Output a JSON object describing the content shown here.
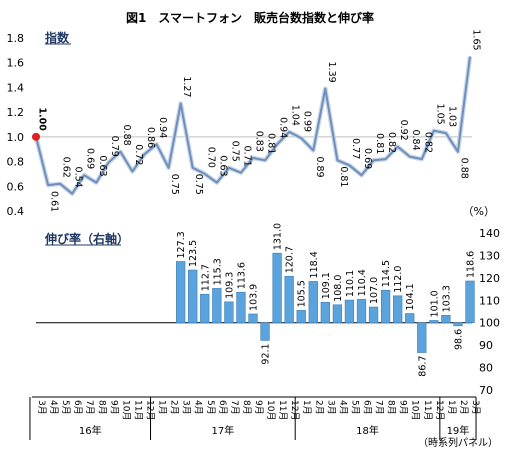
{
  "chart_data": {
    "title": "図1　スマートフォン　販売台数指数と伸び率",
    "note": "（時系列パネル）",
    "categories": [
      "3月",
      "4月",
      "5月",
      "6月",
      "7月",
      "8月",
      "9月",
      "10月",
      "11月",
      "12月",
      "1月",
      "2月",
      "3月",
      "4月",
      "5月",
      "6月",
      "7月",
      "8月",
      "9月",
      "10月",
      "11月",
      "12月",
      "1月",
      "2月",
      "3月",
      "4月",
      "5月",
      "6月",
      "7月",
      "8月",
      "9月",
      "10月",
      "11月",
      "12月",
      "1月",
      "2月",
      "3月"
    ],
    "years": [
      {
        "label": "16年",
        "start": 0,
        "end": 9
      },
      {
        "label": "17年",
        "start": 10,
        "end": 21
      },
      {
        "label": "18年",
        "start": 22,
        "end": 33
      },
      {
        "label": "19年",
        "start": 34,
        "end": 36
      }
    ],
    "index_chart": {
      "type": "line",
      "series_name": "指数",
      "ylim": [
        0.4,
        1.8
      ],
      "yticks": [
        0.4,
        0.6,
        0.8,
        1.0,
        1.2,
        1.4,
        1.6,
        1.8
      ],
      "ytick_labels": [
        "0.4",
        "0.6",
        "0.8",
        "1.0",
        "1.2",
        "1.4",
        "1.6",
        "1.8"
      ],
      "values": [
        1.0,
        0.61,
        0.62,
        0.54,
        0.69,
        0.63,
        0.79,
        0.88,
        0.72,
        0.86,
        0.94,
        0.75,
        1.27,
        0.75,
        0.7,
        0.63,
        0.75,
        0.71,
        0.83,
        0.81,
        0.94,
        1.04,
        0.99,
        0.89,
        1.39,
        0.81,
        0.77,
        0.69,
        0.81,
        0.82,
        0.92,
        0.84,
        0.82,
        1.05,
        1.03,
        0.88,
        1.65
      ],
      "labels": [
        "1.00",
        "0.61",
        "0.62",
        "0.54",
        "0.69",
        "0.63",
        "0.79",
        "0.88",
        "0.72",
        "0.86",
        "0.94",
        "0.75",
        "1.27",
        "0.75",
        "0.70",
        "0.63",
        "0.75",
        "0.71",
        "0.83",
        "0.81",
        "0.94",
        "1.04",
        "0.99",
        "0.89",
        "1.39",
        "0.81",
        "0.77",
        "0.69",
        "0.81",
        "0.82",
        "0.92",
        "0.84",
        "0.82",
        "1.05",
        "1.03",
        "0.88",
        "1.65"
      ],
      "label_pos": [
        "above",
        "below",
        "above",
        "above",
        "above",
        "above",
        "above",
        "above",
        "above",
        "above",
        "above",
        "below",
        "above",
        "below",
        "above",
        "above",
        "above",
        "above",
        "above",
        "above",
        "above",
        "above",
        "above",
        "below",
        "above",
        "below",
        "above",
        "above",
        "above",
        "above",
        "above",
        "above",
        "above",
        "above",
        "above",
        "below",
        "above"
      ],
      "line_color": "#6f8fb8",
      "marker_color": "#e02020",
      "first_label_color": "#c00000"
    },
    "growth_chart": {
      "type": "bar",
      "series_name": "伸び率（右軸）",
      "unit_label": "（%）",
      "ylim": [
        70,
        140
      ],
      "baseline": 100,
      "yticks": [
        70,
        80,
        90,
        100,
        110,
        120,
        130,
        140
      ],
      "ytick_labels": [
        "70",
        "80",
        "90",
        "100",
        "110",
        "120",
        "130",
        "140"
      ],
      "values": [
        null,
        null,
        null,
        null,
        null,
        null,
        null,
        null,
        null,
        null,
        null,
        null,
        127.3,
        123.5,
        112.7,
        115.3,
        109.3,
        113.6,
        103.9,
        92.1,
        131.0,
        120.7,
        105.5,
        118.4,
        109.1,
        108.0,
        110.1,
        110.4,
        107.0,
        114.5,
        112.0,
        104.1,
        86.7,
        101.0,
        103.3,
        98.6,
        118.6
      ],
      "labels": [
        "",
        "",
        "",
        "",
        "",
        "",
        "",
        "",
        "",
        "",
        "",
        "",
        "127.3",
        "123.5",
        "112.7",
        "115.3",
        "109.3",
        "113.6",
        "103.9",
        "92.1",
        "131.0",
        "120.7",
        "105.5",
        "118.4",
        "109.1",
        "108.0",
        "110.1",
        "110.4",
        "107.0",
        "114.5",
        "112.0",
        "104.1",
        "86.7",
        "101.0",
        "103.3",
        "98.6",
        "118.6"
      ],
      "bar_color": "#5ba3dc",
      "bar_edge": "#3f7fb8"
    },
    "gridline_color": "#bfbfbf"
  }
}
